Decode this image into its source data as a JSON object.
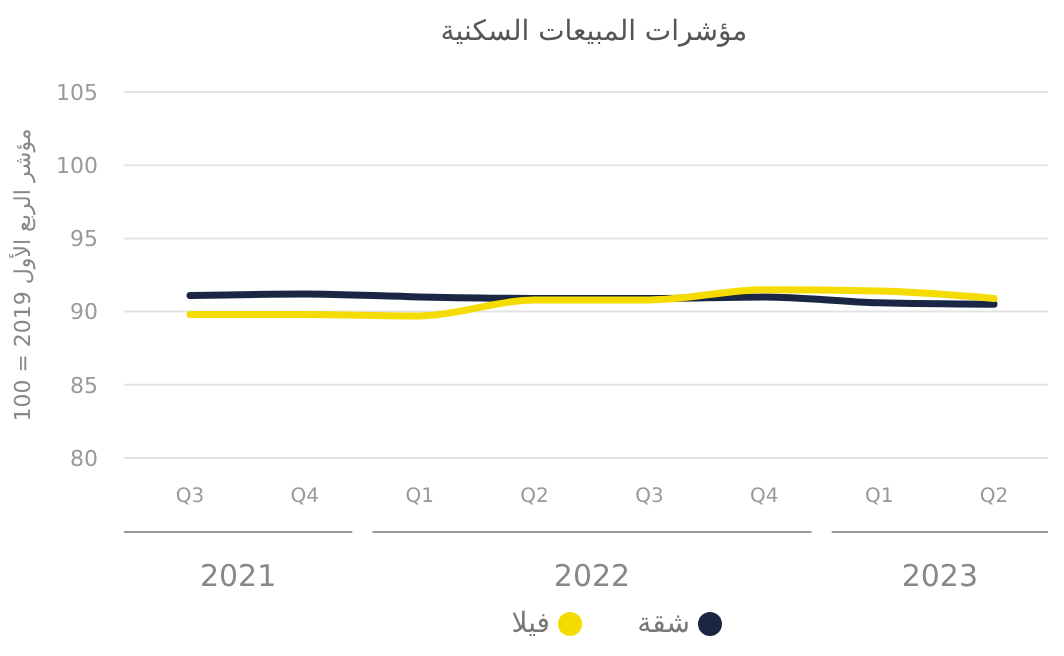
{
  "chart_data": {
    "type": "line",
    "title": "مؤشرات المبيعات السكنية",
    "ylabel": "مؤشر الربع الأول 2019 = 100",
    "categories": [
      "Q3",
      "Q4",
      "Q1",
      "Q2",
      "Q3",
      "Q4",
      "Q1",
      "Q2"
    ],
    "annotations": [
      "2021",
      "2022",
      "2023"
    ],
    "series": [
      {
        "name": "شقة",
        "color": "#1a2744",
        "values": [
          91.1,
          91.2,
          91.0,
          90.9,
          90.9,
          91.0,
          90.6,
          90.5
        ]
      },
      {
        "name": "فيلا",
        "color": "#f5dc00",
        "values": [
          89.8,
          89.8,
          89.7,
          90.8,
          90.8,
          91.5,
          91.4,
          90.9
        ]
      }
    ],
    "ylim": [
      80,
      105
    ],
    "yticks": [
      80,
      85,
      90,
      95,
      100,
      105
    ],
    "grid": "y",
    "legend": "bottom",
    "marker": "none",
    "line_style": "solid"
  }
}
